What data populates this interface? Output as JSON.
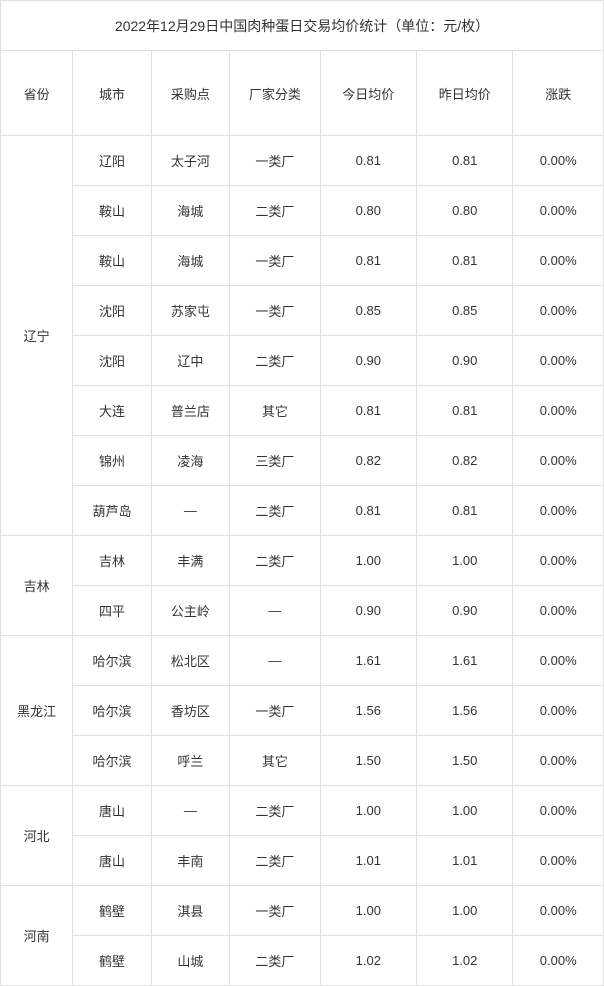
{
  "title": "2022年12月29日中国肉种蛋日交易均价统计（单位：元/枚）",
  "columns": [
    "省份",
    "城市",
    "采购点",
    "厂家分类",
    "今日均价",
    "昨日均价",
    "涨跌"
  ],
  "colors": {
    "border": "#e0e0e0",
    "text": "#333333",
    "background": "#ffffff"
  },
  "font_sizes": {
    "title": 14,
    "cell": 13
  },
  "provinces": [
    {
      "name": "辽宁",
      "rows": [
        {
          "city": "辽阳",
          "point": "太子河",
          "type": "一类厂",
          "today": "0.81",
          "yesterday": "0.81",
          "change": "0.00%"
        },
        {
          "city": "鞍山",
          "point": "海城",
          "type": "二类厂",
          "today": "0.80",
          "yesterday": "0.80",
          "change": "0.00%"
        },
        {
          "city": "鞍山",
          "point": "海城",
          "type": "一类厂",
          "today": "0.81",
          "yesterday": "0.81",
          "change": "0.00%"
        },
        {
          "city": "沈阳",
          "point": "苏家屯",
          "type": "一类厂",
          "today": "0.85",
          "yesterday": "0.85",
          "change": "0.00%"
        },
        {
          "city": "沈阳",
          "point": "辽中",
          "type": "二类厂",
          "today": "0.90",
          "yesterday": "0.90",
          "change": "0.00%"
        },
        {
          "city": "大连",
          "point": "普兰店",
          "type": "其它",
          "today": "0.81",
          "yesterday": "0.81",
          "change": "0.00%"
        },
        {
          "city": "锦州",
          "point": "凌海",
          "type": "三类厂",
          "today": "0.82",
          "yesterday": "0.82",
          "change": "0.00%"
        },
        {
          "city": "葫芦岛",
          "point": "—",
          "type": "二类厂",
          "today": "0.81",
          "yesterday": "0.81",
          "change": "0.00%"
        }
      ]
    },
    {
      "name": "吉林",
      "rows": [
        {
          "city": "吉林",
          "point": "丰满",
          "type": "二类厂",
          "today": "1.00",
          "yesterday": "1.00",
          "change": "0.00%"
        },
        {
          "city": "四平",
          "point": "公主岭",
          "type": "—",
          "today": "0.90",
          "yesterday": "0.90",
          "change": "0.00%"
        }
      ]
    },
    {
      "name": "黑龙江",
      "rows": [
        {
          "city": "哈尔滨",
          "point": "松北区",
          "type": "—",
          "today": "1.61",
          "yesterday": "1.61",
          "change": "0.00%"
        },
        {
          "city": "哈尔滨",
          "point": "香坊区",
          "type": "一类厂",
          "today": "1.56",
          "yesterday": "1.56",
          "change": "0.00%"
        },
        {
          "city": "哈尔滨",
          "point": "呼兰",
          "type": "其它",
          "today": "1.50",
          "yesterday": "1.50",
          "change": "0.00%"
        }
      ]
    },
    {
      "name": "河北",
      "rows": [
        {
          "city": "唐山",
          "point": "—",
          "type": "二类厂",
          "today": "1.00",
          "yesterday": "1.00",
          "change": "0.00%"
        },
        {
          "city": "唐山",
          "point": "丰南",
          "type": "二类厂",
          "today": "1.01",
          "yesterday": "1.01",
          "change": "0.00%"
        }
      ]
    },
    {
      "name": "河南",
      "rows": [
        {
          "city": "鹤壁",
          "point": "淇县",
          "type": "一类厂",
          "today": "1.00",
          "yesterday": "1.00",
          "change": "0.00%"
        },
        {
          "city": "鹤壁",
          "point": "山城",
          "type": "二类厂",
          "today": "1.02",
          "yesterday": "1.02",
          "change": "0.00%"
        }
      ]
    }
  ]
}
